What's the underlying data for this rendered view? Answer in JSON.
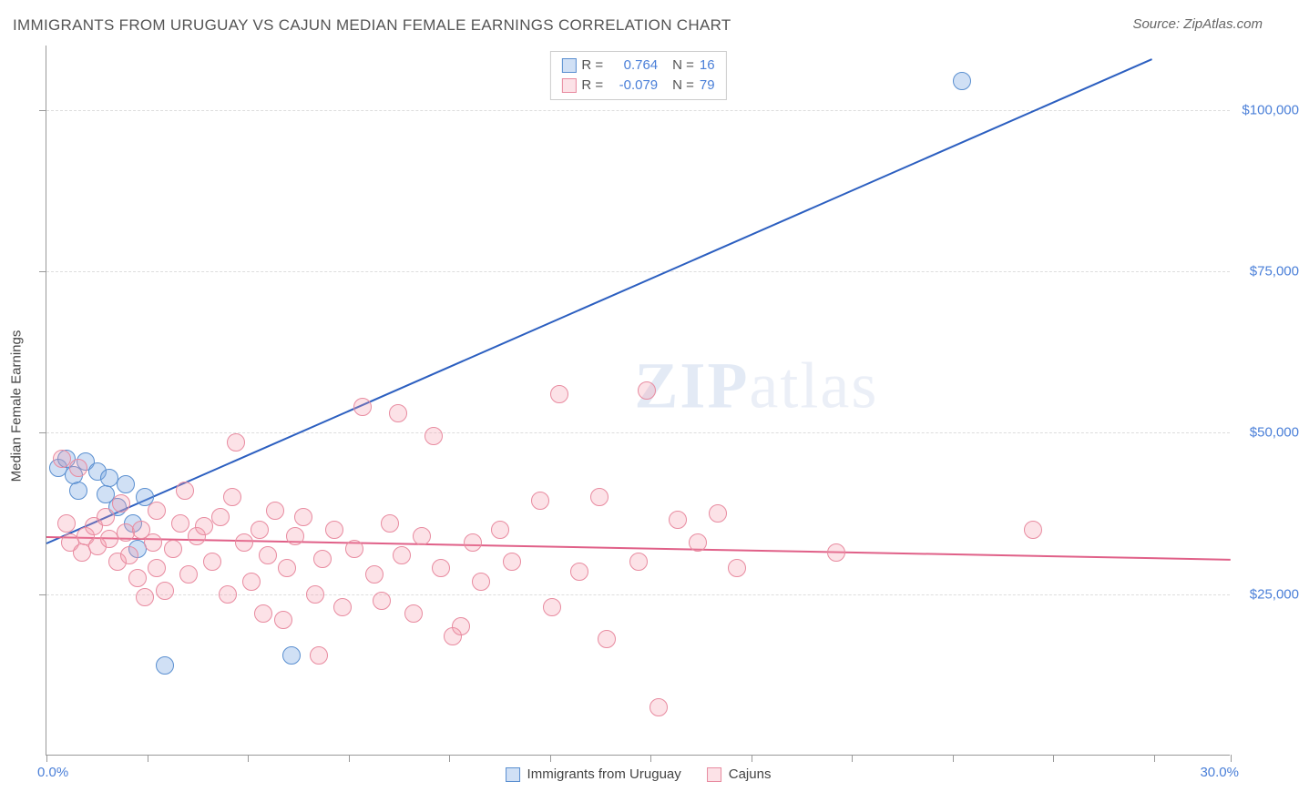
{
  "title": "IMMIGRANTS FROM URUGUAY VS CAJUN MEDIAN FEMALE EARNINGS CORRELATION CHART",
  "source": "Source: ZipAtlas.com",
  "watermark": "ZIPatlas",
  "chart": {
    "type": "scatter",
    "background_color": "#ffffff",
    "grid_color": "#dddddd",
    "axis_color": "#999999",
    "text_color": "#444444",
    "tick_label_color": "#4a7fd8",
    "title_fontsize": 17,
    "label_fontsize": 15,
    "x_axis": {
      "min": 0.0,
      "max": 30.0,
      "label_left": "0.0%",
      "label_right": "30.0%",
      "tick_positions_pct": [
        0,
        8.5,
        17,
        25.5,
        34,
        42.5,
        51,
        59.5,
        68,
        76.5,
        85,
        93.5,
        100
      ]
    },
    "y_axis": {
      "title": "Median Female Earnings",
      "min": 0,
      "max": 110000,
      "gridlines": [
        {
          "value": 25000,
          "label": "$25,000"
        },
        {
          "value": 50000,
          "label": "$50,000"
        },
        {
          "value": 75000,
          "label": "$75,000"
        },
        {
          "value": 100000,
          "label": "$100,000"
        }
      ]
    },
    "series": [
      {
        "name": "Immigrants from Uruguay",
        "color_fill": "rgba(120,165,225,0.35)",
        "color_stroke": "#5a8fd0",
        "trend_color": "#2c5fc0",
        "marker_radius": 10,
        "R": "0.764",
        "N": "16",
        "trend": {
          "x1": 0.0,
          "y1": 33000,
          "x2": 28.0,
          "y2": 108000
        },
        "points": [
          {
            "x": 0.3,
            "y": 44500
          },
          {
            "x": 0.5,
            "y": 46000
          },
          {
            "x": 0.7,
            "y": 43500
          },
          {
            "x": 1.0,
            "y": 45500
          },
          {
            "x": 0.8,
            "y": 41000
          },
          {
            "x": 1.3,
            "y": 44000
          },
          {
            "x": 1.6,
            "y": 43000
          },
          {
            "x": 1.5,
            "y": 40500
          },
          {
            "x": 2.0,
            "y": 42000
          },
          {
            "x": 1.8,
            "y": 38500
          },
          {
            "x": 2.2,
            "y": 36000
          },
          {
            "x": 2.5,
            "y": 40000
          },
          {
            "x": 2.3,
            "y": 32000
          },
          {
            "x": 3.0,
            "y": 14000
          },
          {
            "x": 6.2,
            "y": 15500
          },
          {
            "x": 23.2,
            "y": 104500
          }
        ]
      },
      {
        "name": "Cajuns",
        "color_fill": "rgba(245,150,170,0.28)",
        "color_stroke": "#e88ba0",
        "trend_color": "#e06088",
        "marker_radius": 10,
        "R": "-0.079",
        "N": "79",
        "trend": {
          "x1": 0.0,
          "y1": 34000,
          "x2": 30.0,
          "y2": 30500
        },
        "points": [
          {
            "x": 0.4,
            "y": 46000
          },
          {
            "x": 0.5,
            "y": 36000
          },
          {
            "x": 0.6,
            "y": 33000
          },
          {
            "x": 0.8,
            "y": 44500
          },
          {
            "x": 0.9,
            "y": 31500
          },
          {
            "x": 1.0,
            "y": 34000
          },
          {
            "x": 1.2,
            "y": 35500
          },
          {
            "x": 1.3,
            "y": 32500
          },
          {
            "x": 1.5,
            "y": 37000
          },
          {
            "x": 1.6,
            "y": 33500
          },
          {
            "x": 1.8,
            "y": 30000
          },
          {
            "x": 1.9,
            "y": 39000
          },
          {
            "x": 2.0,
            "y": 34500
          },
          {
            "x": 2.1,
            "y": 31000
          },
          {
            "x": 2.3,
            "y": 27500
          },
          {
            "x": 2.4,
            "y": 35000
          },
          {
            "x": 2.5,
            "y": 24500
          },
          {
            "x": 2.7,
            "y": 33000
          },
          {
            "x": 2.8,
            "y": 29000
          },
          {
            "x": 2.8,
            "y": 38000
          },
          {
            "x": 3.0,
            "y": 25500
          },
          {
            "x": 3.5,
            "y": 41000
          },
          {
            "x": 3.2,
            "y": 32000
          },
          {
            "x": 3.4,
            "y": 36000
          },
          {
            "x": 3.6,
            "y": 28000
          },
          {
            "x": 3.8,
            "y": 34000
          },
          {
            "x": 4.0,
            "y": 35500
          },
          {
            "x": 4.2,
            "y": 30000
          },
          {
            "x": 4.4,
            "y": 37000
          },
          {
            "x": 4.6,
            "y": 25000
          },
          {
            "x": 4.7,
            "y": 40000
          },
          {
            "x": 4.8,
            "y": 48500
          },
          {
            "x": 5.0,
            "y": 33000
          },
          {
            "x": 5.2,
            "y": 27000
          },
          {
            "x": 5.4,
            "y": 35000
          },
          {
            "x": 5.5,
            "y": 22000
          },
          {
            "x": 5.6,
            "y": 31000
          },
          {
            "x": 5.8,
            "y": 38000
          },
          {
            "x": 6.0,
            "y": 21000
          },
          {
            "x": 6.1,
            "y": 29000
          },
          {
            "x": 6.3,
            "y": 34000
          },
          {
            "x": 6.5,
            "y": 37000
          },
          {
            "x": 6.8,
            "y": 25000
          },
          {
            "x": 6.9,
            "y": 15500
          },
          {
            "x": 7.0,
            "y": 30500
          },
          {
            "x": 7.3,
            "y": 35000
          },
          {
            "x": 7.5,
            "y": 23000
          },
          {
            "x": 7.8,
            "y": 32000
          },
          {
            "x": 8.0,
            "y": 54000
          },
          {
            "x": 8.3,
            "y": 28000
          },
          {
            "x": 8.5,
            "y": 24000
          },
          {
            "x": 8.7,
            "y": 36000
          },
          {
            "x": 8.9,
            "y": 53000
          },
          {
            "x": 9.0,
            "y": 31000
          },
          {
            "x": 9.3,
            "y": 22000
          },
          {
            "x": 9.5,
            "y": 34000
          },
          {
            "x": 9.8,
            "y": 49500
          },
          {
            "x": 10.0,
            "y": 29000
          },
          {
            "x": 10.3,
            "y": 18500
          },
          {
            "x": 10.5,
            "y": 20000
          },
          {
            "x": 10.8,
            "y": 33000
          },
          {
            "x": 11.0,
            "y": 27000
          },
          {
            "x": 11.5,
            "y": 35000
          },
          {
            "x": 11.8,
            "y": 30000
          },
          {
            "x": 12.5,
            "y": 39500
          },
          {
            "x": 12.8,
            "y": 23000
          },
          {
            "x": 13.0,
            "y": 56000
          },
          {
            "x": 13.5,
            "y": 28500
          },
          {
            "x": 14.0,
            "y": 40000
          },
          {
            "x": 14.2,
            "y": 18000
          },
          {
            "x": 15.0,
            "y": 30000
          },
          {
            "x": 15.2,
            "y": 56500
          },
          {
            "x": 15.5,
            "y": 7500
          },
          {
            "x": 16.0,
            "y": 36500
          },
          {
            "x": 16.5,
            "y": 33000
          },
          {
            "x": 17.0,
            "y": 37500
          },
          {
            "x": 17.5,
            "y": 29000
          },
          {
            "x": 20.0,
            "y": 31500
          },
          {
            "x": 25.0,
            "y": 35000
          }
        ]
      }
    ],
    "legend_top": {
      "R_label": "R =",
      "N_label": "N =",
      "value_color": "#4a7fd8",
      "label_color": "#555555"
    },
    "legend_bottom_items": [
      "Immigrants from Uruguay",
      "Cajuns"
    ]
  }
}
